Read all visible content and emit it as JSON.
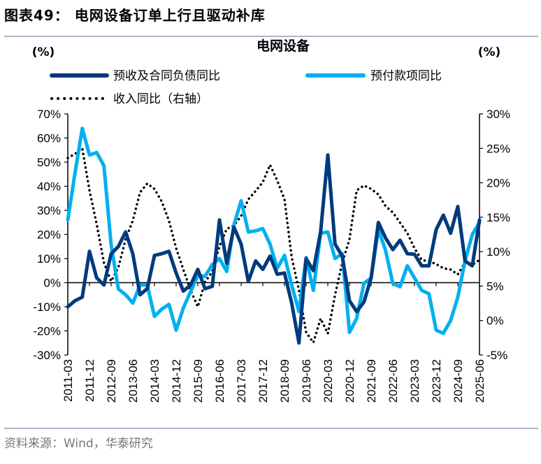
{
  "figure": {
    "title": "图表49： 电网设备订单上行且驱动补库",
    "source": "资料来源：Wind，华泰研究"
  },
  "chart_data": {
    "type": "line",
    "title": "电网设备",
    "ylabel_left": "(%)",
    "ylabel_right": "(%)",
    "ylim_left": [
      -30,
      70
    ],
    "ylim_right": [
      -5,
      30
    ],
    "yticks_left": [
      "70%",
      "60%",
      "50%",
      "40%",
      "30%",
      "20%",
      "10%",
      "0%",
      "-10%",
      "-20%",
      "-30%"
    ],
    "yticks_right": [
      "30%",
      "25%",
      "20%",
      "15%",
      "10%",
      "5%",
      "0%",
      "-5%"
    ],
    "grid": false,
    "legend_position": "top",
    "categories": [
      "2011-03",
      "2011-06",
      "2011-09",
      "2011-12",
      "2012-03",
      "2012-06",
      "2012-09",
      "2012-12",
      "2013-03",
      "2013-06",
      "2013-09",
      "2013-12",
      "2014-03",
      "2014-06",
      "2014-09",
      "2014-12",
      "2015-03",
      "2015-06",
      "2015-09",
      "2015-12",
      "2016-03",
      "2016-06",
      "2016-09",
      "2016-12",
      "2017-03",
      "2017-06",
      "2017-09",
      "2017-12",
      "2018-03",
      "2018-06",
      "2018-09",
      "2018-12",
      "2019-03",
      "2019-06",
      "2019-09",
      "2019-12",
      "2020-03",
      "2020-06",
      "2020-09",
      "2020-12",
      "2021-03",
      "2021-06",
      "2021-09",
      "2021-12",
      "2022-03",
      "2022-06",
      "2022-09",
      "2022-12",
      "2023-03",
      "2023-06",
      "2023-09",
      "2023-12",
      "2024-03",
      "2024-06",
      "2024-09",
      "2024-12",
      "2025-03",
      "2025-06"
    ],
    "xtick_labels": [
      "2011-03",
      "2011-12",
      "2012-09",
      "2013-06",
      "2014-03",
      "2014-12",
      "2015-09",
      "2016-06",
      "2017-03",
      "2017-12",
      "2018-09",
      "2019-06",
      "2020-03",
      "2020-12",
      "2021-09",
      "2022-06",
      "2023-03",
      "2023-12",
      "2024-09",
      "2025-06"
    ],
    "series": [
      {
        "name": "预收及合同负债同比",
        "axis": "left",
        "color": "#003a7d",
        "style": "solid",
        "values": [
          -10,
          -7.5,
          -6,
          13,
          2,
          -1,
          12,
          15,
          21,
          12,
          -5,
          -2.5,
          11.3,
          12,
          13,
          4,
          -3.5,
          -1,
          5.5,
          -2.5,
          -1.5,
          26,
          8,
          23,
          16,
          0.5,
          9,
          5.5,
          11,
          3.5,
          4,
          -8.5,
          -25,
          10,
          5,
          21,
          53,
          16,
          11,
          -7.5,
          -12,
          -8,
          2,
          25,
          18.5,
          13.7,
          17.6,
          12,
          11.8,
          7,
          7,
          22,
          28,
          20.5,
          31.6,
          9,
          7,
          26
        ]
      },
      {
        "name": "预付款项同比",
        "axis": "left",
        "color": "#00b0f0",
        "style": "solid",
        "values": [
          26,
          45.5,
          64,
          53,
          54,
          48.5,
          15.7,
          -2.6,
          -5,
          -8.5,
          -1,
          -1,
          -14,
          -11,
          -9,
          -19.7,
          -10.5,
          -3.7,
          3,
          2.6,
          7.5,
          10,
          4.6,
          24,
          34,
          21,
          21.5,
          22.4,
          16,
          6,
          11.3,
          -1,
          -12,
          10.4,
          -3.2,
          20.5,
          21,
          10,
          12,
          -20.6,
          -14.8,
          -0.3,
          2,
          22,
          13.3,
          -0.3,
          -1.7,
          7,
          2,
          -3.2,
          -4.6,
          -19.7,
          -21,
          -15.7,
          -6,
          9,
          20,
          25
        ]
      },
      {
        "name": "收入同比（右轴）",
        "axis": "right",
        "color": "#000000",
        "style": "dotted",
        "values": [
          23.6,
          24.2,
          25,
          18.9,
          14,
          8.4,
          5.7,
          7.7,
          11.8,
          14.5,
          18.6,
          19.9,
          19.1,
          17.3,
          14.5,
          10.5,
          7.4,
          4.4,
          2,
          5.6,
          7.1,
          10.8,
          13.3,
          13.8,
          15.2,
          17.6,
          18.8,
          20.1,
          22.6,
          20.3,
          17.6,
          9.2,
          4.4,
          -1.7,
          -3.2,
          0.3,
          -1.9,
          3.7,
          8.4,
          11.8,
          18.9,
          19.6,
          19.1,
          18.3,
          16.6,
          15.7,
          14.2,
          12.7,
          10.5,
          8.8,
          8.6,
          8.2,
          7.6,
          7.4,
          6.7,
          8.4,
          8.1,
          8.8
        ]
      }
    ]
  }
}
